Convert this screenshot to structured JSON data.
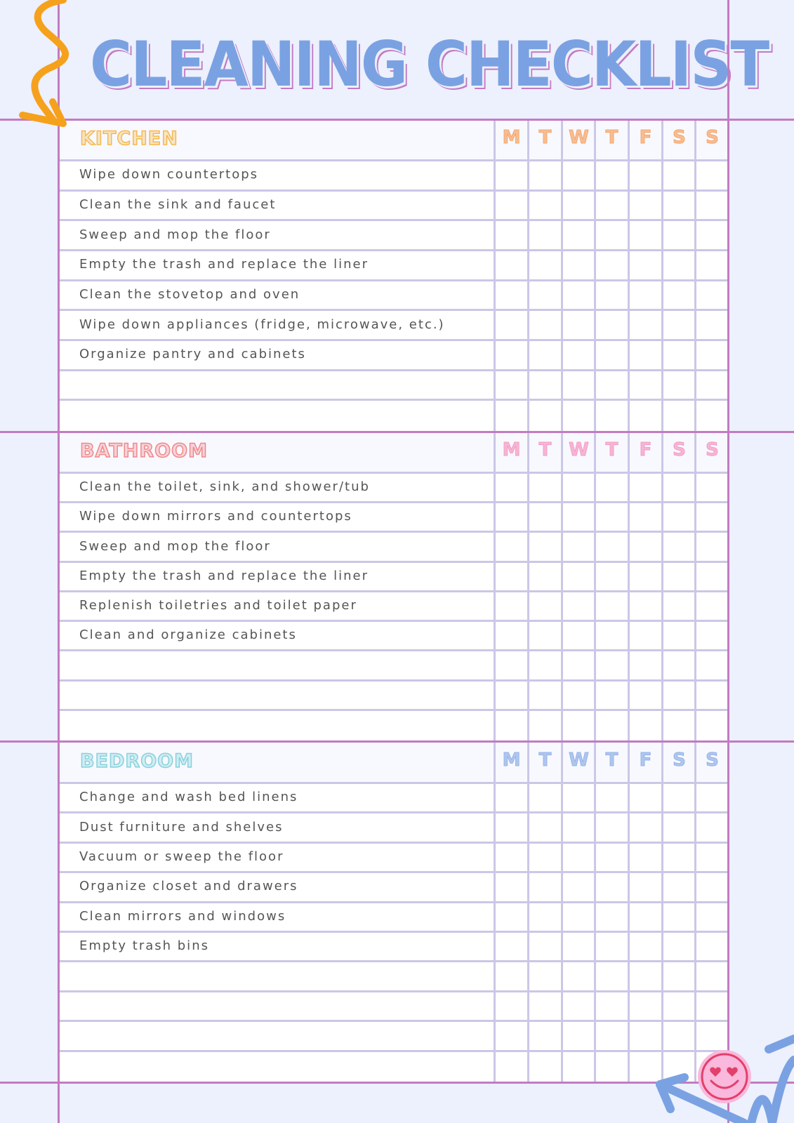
{
  "title": "CLEANING CHECKLIST",
  "days": [
    "M",
    "T",
    "W",
    "T",
    "F",
    "S",
    "S"
  ],
  "colors": {
    "background": "#edf0fd",
    "border": "#c27bc2",
    "grid": "#cbc7e6",
    "title": "#7aa2e2"
  },
  "sections": [
    {
      "name": "KITCHEN",
      "title_color": "#f5b94e",
      "day_color": "#f5a66c",
      "blank_rows": 2,
      "tasks": [
        "Wipe down countertops",
        "Clean the sink and faucet",
        "Sweep and mop the floor",
        "Empty the trash and replace the liner",
        "Clean the stovetop and oven",
        "Wipe down appliances (fridge, microwave, etc.)",
        "Organize pantry and cabinets"
      ]
    },
    {
      "name": "BATHROOM",
      "title_color": "#f2888a",
      "day_color": "#f59cc4",
      "blank_rows": 3,
      "tasks": [
        "Clean the toilet, sink, and shower/tub",
        "Wipe down mirrors and countertops",
        "Sweep and mop the floor",
        "Empty the trash and replace the liner",
        "Replenish toiletries and toilet paper",
        "Clean and organize cabinets"
      ]
    },
    {
      "name": "BEDROOM",
      "title_color": "#86d2dc",
      "day_color": "#95b3e8",
      "blank_rows": 4,
      "tasks": [
        "Change and wash bed linens",
        "Dust furniture and shelves",
        "Vacuum or sweep the floor",
        "Organize closet and drawers",
        "Clean mirrors and windows",
        "Empty trash bins"
      ]
    }
  ],
  "decorations": {
    "top_left": "orange-squiggle-arrow-icon",
    "bottom_right": "smiley-heart-eyes-icon"
  }
}
